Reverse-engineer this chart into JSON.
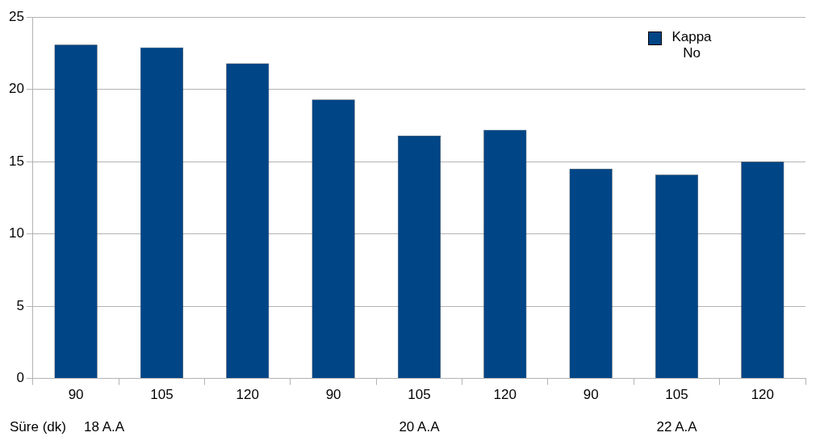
{
  "chart_data": {
    "type": "bar",
    "xlabel": "Süre (dk)",
    "categories": [
      "90",
      "105",
      "120",
      "90",
      "105",
      "120",
      "90",
      "105",
      "120"
    ],
    "series": [
      {
        "name": "Kappa No",
        "color": "#004586",
        "values": [
          23.1,
          22.9,
          21.8,
          19.3,
          16.8,
          17.2,
          14.5,
          14.1,
          15.0
        ]
      }
    ],
    "ylim": [
      0,
      25
    ],
    "yticks": [
      0,
      5,
      10,
      15,
      20,
      25
    ],
    "grid": "y",
    "legend": "top right",
    "annotations": [
      "18 A.A",
      "20 A.A",
      "22 A.A"
    ]
  }
}
